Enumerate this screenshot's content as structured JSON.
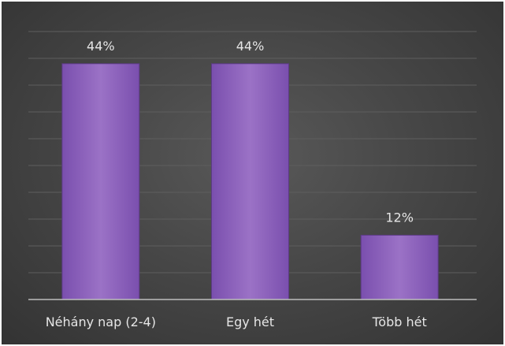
{
  "chart_data": {
    "type": "bar",
    "categories": [
      "Néhány nap (2-4)",
      "Egy hét",
      "Több hét"
    ],
    "values": [
      44,
      44,
      12
    ],
    "data_labels": [
      "44%",
      "44%",
      "12%"
    ],
    "ylim": [
      0,
      50
    ],
    "grid": true,
    "legend": "none",
    "title": "",
    "xlabel": "",
    "ylabel": "",
    "colors": {
      "background": "#474747",
      "bar_fill_light": "#9b72c6",
      "bar_fill_dark": "#7a4fae",
      "bar_edge": "#5c3b85",
      "gridline": "#5e5e5e",
      "axis": "#bdbdbd",
      "text": "#e6e6e6"
    }
  }
}
